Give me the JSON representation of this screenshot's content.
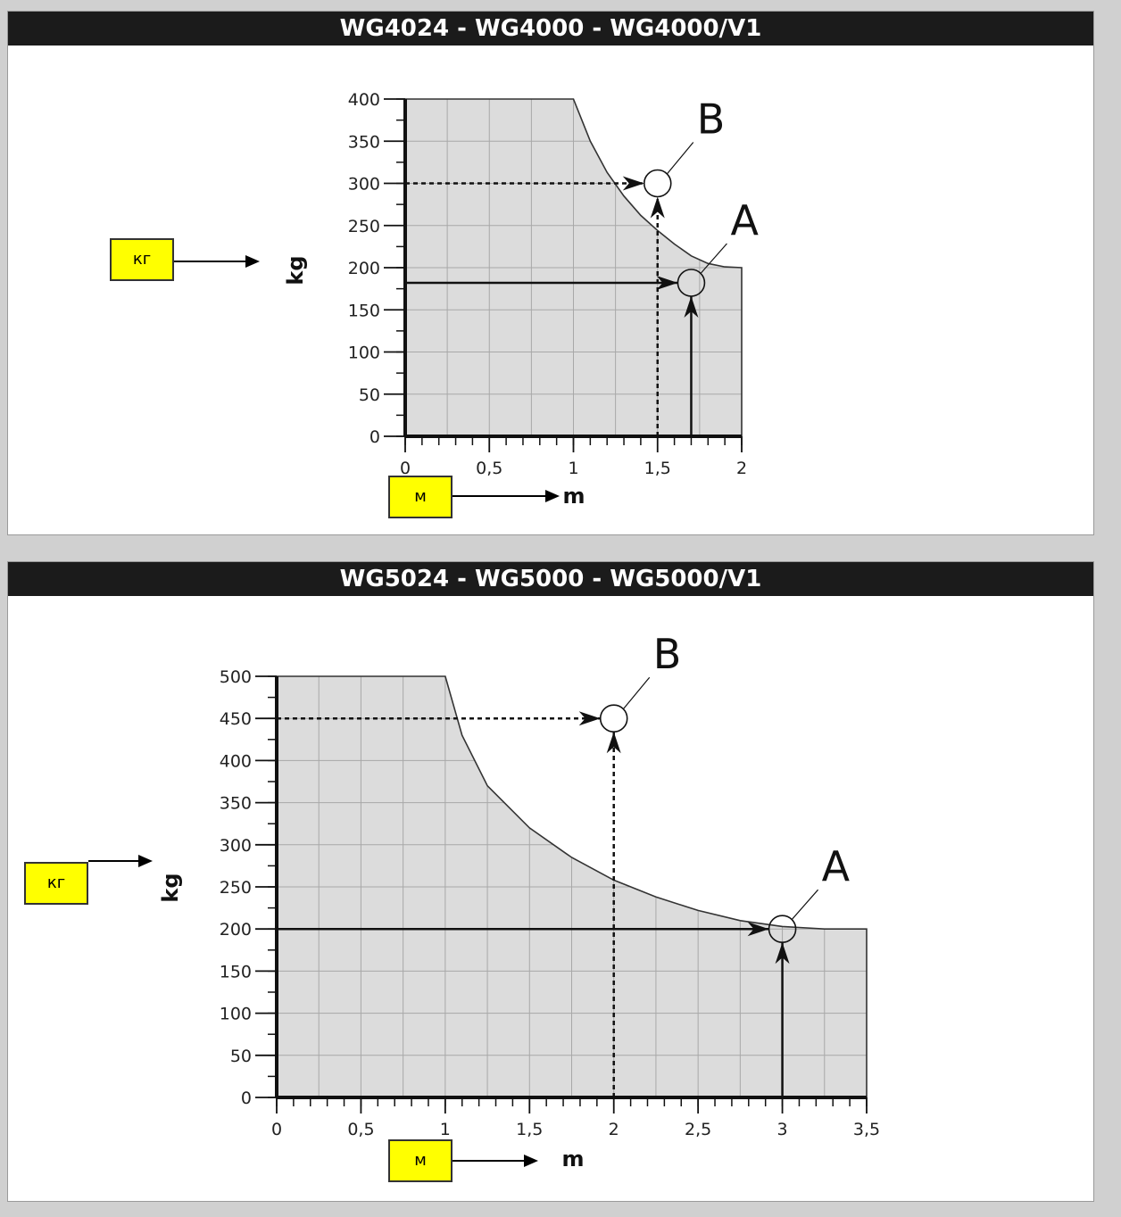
{
  "panels": [
    {
      "title": "WG4024 - WG4000 - WG4000/V1",
      "kg_box": "кг",
      "m_box": "м",
      "chart_data": {
        "type": "area",
        "title": "WG4024 - WG4000 - WG4000/V1",
        "xlabel": "m",
        "ylabel": "kg",
        "xlim": [
          0,
          2
        ],
        "ylim": [
          0,
          400
        ],
        "x_ticks": [
          0,
          0.5,
          1,
          1.5,
          2
        ],
        "x_tick_labels": [
          "0",
          "0,5",
          "1",
          "1,5",
          "2"
        ],
        "y_ticks": [
          0,
          50,
          100,
          150,
          200,
          250,
          300,
          350,
          400
        ],
        "y_tick_labels": [
          "0",
          "50",
          "100",
          "150",
          "200",
          "250",
          "300",
          "350",
          "400"
        ],
        "grid": true,
        "boundary": {
          "x": [
            0,
            1.0,
            1.1,
            1.2,
            1.3,
            1.4,
            1.5,
            1.6,
            1.7,
            1.8,
            1.9,
            2.0
          ],
          "y": [
            400,
            400,
            350,
            313,
            285,
            262,
            244,
            228,
            214,
            205,
            201,
            200
          ]
        },
        "points": [
          {
            "label": "A",
            "x": 1.7,
            "y": 182,
            "line": "solid"
          },
          {
            "label": "B",
            "x": 1.5,
            "y": 300,
            "line": "dashed"
          }
        ]
      }
    },
    {
      "title": "WG5024 - WG5000 - WG5000/V1",
      "kg_box": "кг",
      "m_box": "м",
      "chart_data": {
        "type": "area",
        "title": "WG5024 - WG5000 - WG5000/V1",
        "xlabel": "m",
        "ylabel": "kg",
        "xlim": [
          0,
          3.5
        ],
        "ylim": [
          0,
          500
        ],
        "x_ticks": [
          0,
          0.5,
          1,
          1.5,
          2,
          2.5,
          3,
          3.5
        ],
        "x_tick_labels": [
          "0",
          "0,5",
          "1",
          "1,5",
          "2",
          "2,5",
          "3",
          "3,5"
        ],
        "y_ticks": [
          0,
          50,
          100,
          150,
          200,
          250,
          300,
          350,
          400,
          450,
          500
        ],
        "y_tick_labels": [
          "0",
          "50",
          "100",
          "150",
          "200",
          "250",
          "300",
          "350",
          "400",
          "450",
          "500"
        ],
        "grid": true,
        "boundary": {
          "x": [
            0,
            1.0,
            1.1,
            1.25,
            1.5,
            1.75,
            2.0,
            2.25,
            2.5,
            2.75,
            3.0,
            3.25,
            3.5
          ],
          "y": [
            500,
            500,
            430,
            370,
            320,
            285,
            258,
            238,
            222,
            210,
            203,
            200,
            200
          ]
        },
        "points": [
          {
            "label": "A",
            "x": 3.0,
            "y": 200,
            "line": "solid"
          },
          {
            "label": "B",
            "x": 2.0,
            "y": 450,
            "line": "dashed"
          }
        ]
      }
    }
  ]
}
